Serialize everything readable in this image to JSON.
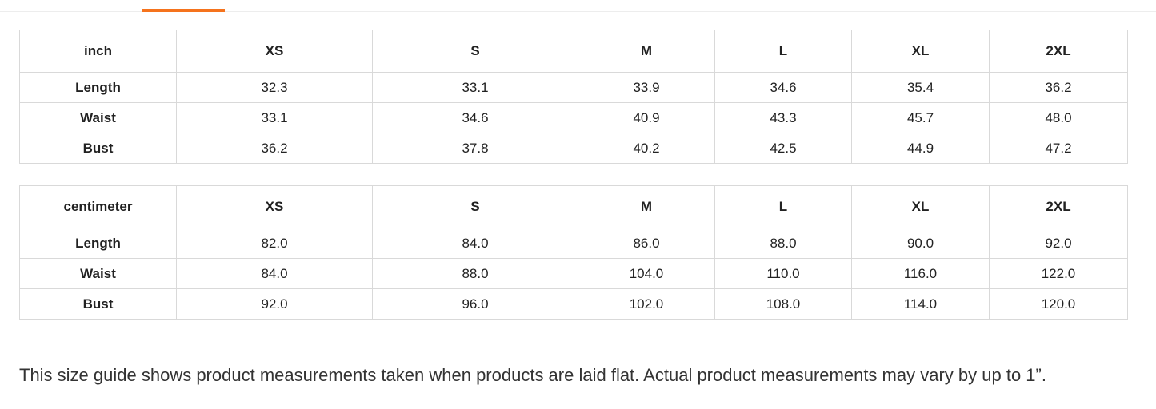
{
  "tab_bar": {
    "indicator_color": "#f5731d"
  },
  "size_tables": [
    {
      "unit_label": "inch",
      "size_columns": [
        "XS",
        "S",
        "M",
        "L",
        "XL",
        "2XL"
      ],
      "rows": [
        {
          "label": "Length",
          "values": [
            "32.3",
            "33.1",
            "33.9",
            "34.6",
            "35.4",
            "36.2"
          ]
        },
        {
          "label": "Waist",
          "values": [
            "33.1",
            "34.6",
            "40.9",
            "43.3",
            "45.7",
            "48.0"
          ]
        },
        {
          "label": "Bust",
          "values": [
            "36.2",
            "37.8",
            "40.2",
            "42.5",
            "44.9",
            "47.2"
          ]
        }
      ]
    },
    {
      "unit_label": "centimeter",
      "size_columns": [
        "XS",
        "S",
        "M",
        "L",
        "XL",
        "2XL"
      ],
      "rows": [
        {
          "label": "Length",
          "values": [
            "82.0",
            "84.0",
            "86.0",
            "88.0",
            "90.0",
            "92.0"
          ]
        },
        {
          "label": "Waist",
          "values": [
            "84.0",
            "88.0",
            "104.0",
            "110.0",
            "116.0",
            "122.0"
          ]
        },
        {
          "label": "Bust",
          "values": [
            "92.0",
            "96.0",
            "102.0",
            "108.0",
            "114.0",
            "120.0"
          ]
        }
      ]
    }
  ],
  "note_text": "This size guide shows product measurements taken when products are laid flat. Actual product measurements may vary by up to 1”."
}
